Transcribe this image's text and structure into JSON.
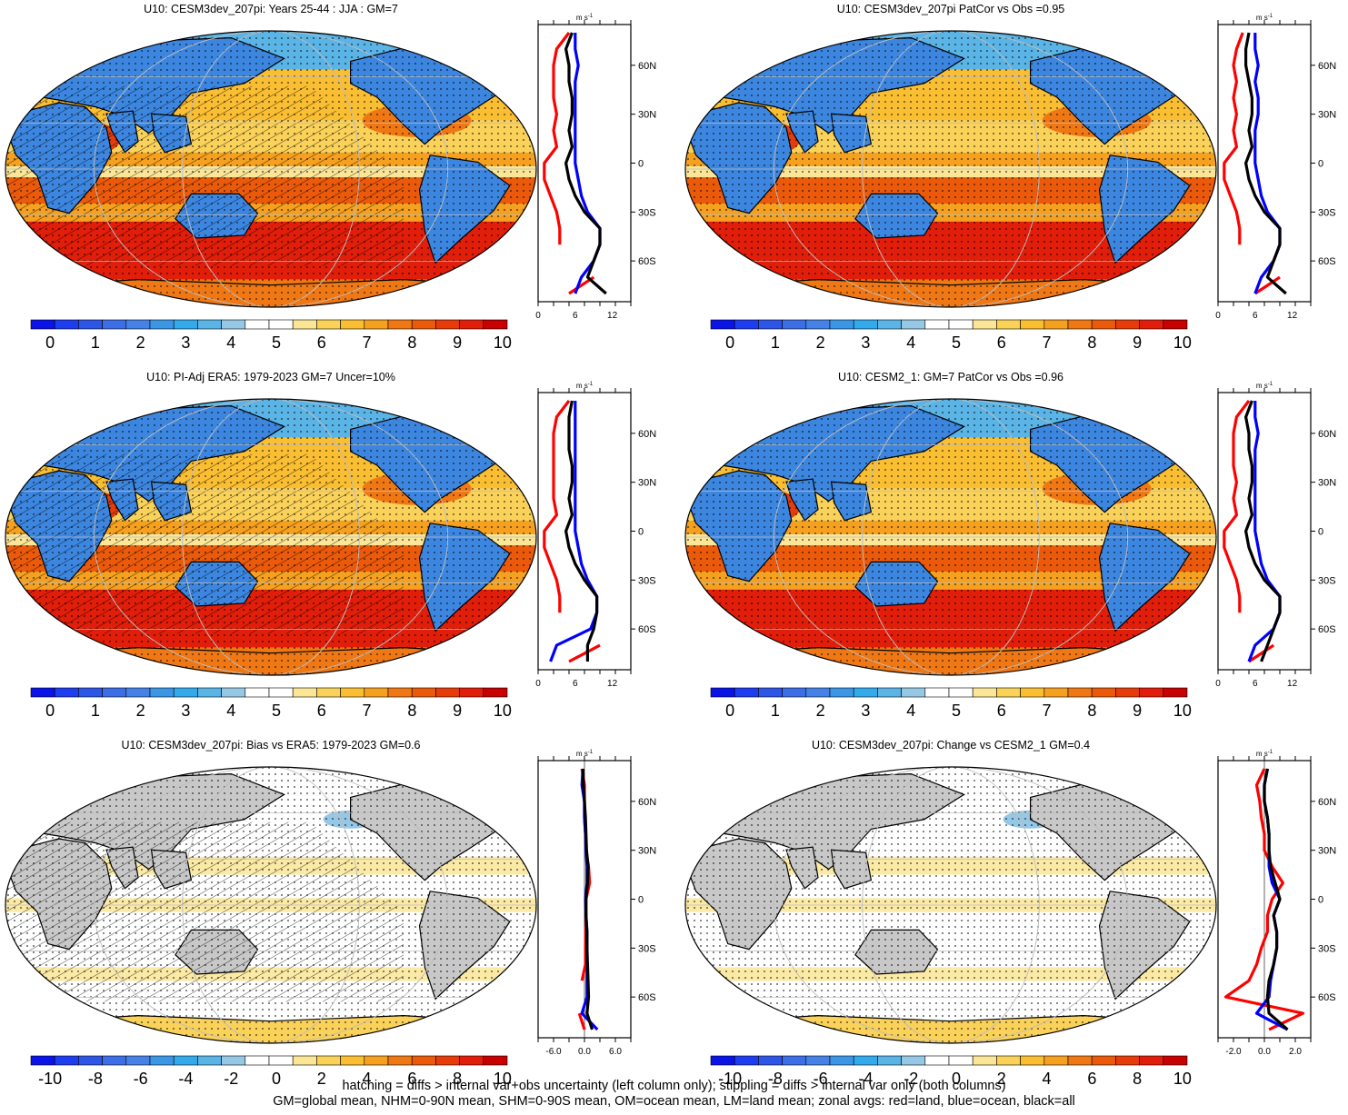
{
  "colors": {
    "scale": [
      "#0a14e6",
      "#1e3cf0",
      "#2d55e6",
      "#3c6ee6",
      "#4682e6",
      "#3c96e6",
      "#32aaeb",
      "#5ab4e6",
      "#96c8e6",
      "#ffffff",
      "#ffffff",
      "#fae696",
      "#fad25a",
      "#fabe32",
      "#f5a01e",
      "#f07814",
      "#eb5a0a",
      "#e63c0a",
      "#e11e0a",
      "#c80000"
    ],
    "land": "#c8c8c8",
    "red_line": "#ff0000",
    "blue_line": "#0000ff",
    "black_line": "#000000"
  },
  "panels": [
    {
      "id": "p1",
      "title": "U10: CESM3dev_207pi: Years 25-44 : JJA : GM=7",
      "kind": "abs",
      "colorbar_labels": [
        "0",
        "1",
        "2",
        "3",
        "4",
        "5",
        "6",
        "7",
        "8",
        "9",
        "10"
      ],
      "profile": {
        "unit": "m s",
        "unit_sup": "-1",
        "lat_labels": [
          "60N",
          "30N",
          "0",
          "30S",
          "60S"
        ],
        "x_labels": [
          "0",
          "6",
          "12"
        ]
      }
    },
    {
      "id": "p2",
      "title": "U10: CESM3dev_207pi PatCor vs Obs =0.95",
      "kind": "abs",
      "colorbar_labels": [
        "0",
        "1",
        "2",
        "3",
        "4",
        "5",
        "6",
        "7",
        "8",
        "9",
        "10"
      ],
      "profile": {
        "unit": "m s",
        "unit_sup": "-1",
        "lat_labels": [
          "60N",
          "30N",
          "0",
          "30S",
          "60S"
        ],
        "x_labels": [
          "0",
          "6",
          "12"
        ]
      }
    },
    {
      "id": "p3",
      "title": "U10: PI-Adj ERA5: 1979-2023 GM=7 Uncer=10%",
      "kind": "abs",
      "colorbar_labels": [
        "0",
        "1",
        "2",
        "3",
        "4",
        "5",
        "6",
        "7",
        "8",
        "9",
        "10"
      ],
      "profile": {
        "unit": "m s",
        "unit_sup": "-1",
        "lat_labels": [
          "60N",
          "30N",
          "0",
          "30S",
          "60S"
        ],
        "x_labels": [
          "0",
          "6",
          "12"
        ]
      }
    },
    {
      "id": "p4",
      "title": "U10: CESM2_1: GM=7 PatCor vs Obs =0.96",
      "kind": "abs",
      "colorbar_labels": [
        "0",
        "1",
        "2",
        "3",
        "4",
        "5",
        "6",
        "7",
        "8",
        "9",
        "10"
      ],
      "profile": {
        "unit": "m s",
        "unit_sup": "-1",
        "lat_labels": [
          "60N",
          "30N",
          "0",
          "30S",
          "60S"
        ],
        "x_labels": [
          "0",
          "6",
          "12"
        ]
      }
    },
    {
      "id": "p5",
      "title": "U10: CESM3dev_207pi: Bias vs ERA5: 1979-2023 GM=0.6",
      "kind": "diff",
      "colorbar_labels": [
        "-10",
        "-8",
        "-6",
        "-4",
        "-2",
        "0",
        "2",
        "4",
        "6",
        "8",
        "10"
      ],
      "profile": {
        "unit": "m s",
        "unit_sup": "-1",
        "lat_labels": [
          "60N",
          "30N",
          "0",
          "30S",
          "60S"
        ],
        "x_labels": [
          "-6.0",
          "0.0",
          "6.0"
        ]
      }
    },
    {
      "id": "p6",
      "title": "U10: CESM3dev_207pi: Change vs CESM2_1 GM=0.4",
      "kind": "diff",
      "colorbar_labels": [
        "-10",
        "-8",
        "-6",
        "-4",
        "-2",
        "0",
        "2",
        "4",
        "6",
        "8",
        "10"
      ],
      "profile": {
        "unit": "m s",
        "unit_sup": "-1",
        "lat_labels": [
          "60N",
          "30N",
          "0",
          "30S",
          "60S"
        ],
        "x_labels": [
          "-2.0",
          "0.0",
          "2.0"
        ]
      }
    }
  ],
  "chart_data": [
    {
      "type": "line",
      "title": "U10: CESM3dev_207pi: Years 25-44 : JJA : GM=7",
      "y": [
        80,
        70,
        60,
        50,
        40,
        30,
        20,
        10,
        0,
        -10,
        -20,
        -30,
        -40,
        -50,
        -60,
        -70,
        -80
      ],
      "xlim": [
        0,
        15
      ],
      "series": [
        {
          "color": "red",
          "values": [
            5,
            3,
            2.5,
            2.5,
            2.5,
            3,
            2.5,
            3,
            1,
            1,
            2,
            3,
            3.5,
            3.5,
            null,
            9,
            5
          ]
        },
        {
          "color": "blue",
          "values": [
            6,
            6,
            6.5,
            6,
            6,
            6,
            6,
            6,
            6,
            6.5,
            7,
            8,
            10,
            10,
            9,
            7,
            6
          ]
        },
        {
          "color": "black",
          "values": [
            5.5,
            4.5,
            5,
            5,
            5.5,
            5.5,
            5,
            5.5,
            4.5,
            5,
            6,
            7.5,
            10,
            10,
            9,
            8,
            11
          ]
        }
      ]
    },
    {
      "type": "line",
      "title": "U10: CESM3dev_207pi PatCor vs Obs =0.95",
      "y": [
        80,
        70,
        60,
        50,
        40,
        30,
        20,
        10,
        0,
        -10,
        -20,
        -30,
        -40,
        -50,
        -60,
        -70,
        -80
      ],
      "xlim": [
        0,
        15
      ],
      "series": [
        {
          "color": "red",
          "values": [
            4,
            3,
            2.5,
            3,
            2.5,
            3,
            2.5,
            3,
            1,
            1,
            2,
            3,
            3.5,
            3.5,
            null,
            10,
            6
          ]
        },
        {
          "color": "blue",
          "values": [
            6,
            6,
            6.5,
            6,
            6.5,
            6.5,
            6,
            6,
            6,
            6.5,
            7,
            8,
            10,
            10,
            9,
            7,
            6
          ]
        },
        {
          "color": "black",
          "values": [
            5,
            4.5,
            4.5,
            5,
            5.5,
            5.5,
            5,
            5.5,
            4.5,
            5,
            6,
            7.5,
            10,
            10,
            9,
            8,
            11
          ]
        }
      ]
    },
    {
      "type": "line",
      "title": "U10: PI-Adj ERA5: 1979-2023 GM=7 Uncer=10%",
      "y": [
        80,
        70,
        60,
        50,
        40,
        30,
        20,
        10,
        0,
        -10,
        -20,
        -30,
        -40,
        -50,
        -60,
        -70,
        -80
      ],
      "xlim": [
        0,
        15
      ],
      "series": [
        {
          "color": "red",
          "values": [
            5,
            3,
            2.5,
            2.5,
            2.5,
            2.5,
            2.5,
            3,
            1,
            1,
            2,
            3,
            3.5,
            3.5,
            null,
            10,
            5
          ]
        },
        {
          "color": "blue",
          "values": [
            6,
            6,
            6,
            6,
            6,
            6,
            6,
            6,
            6,
            6.5,
            7,
            8,
            9.5,
            9.5,
            8.5,
            3,
            2
          ]
        },
        {
          "color": "black",
          "values": [
            5.5,
            5,
            5,
            5,
            5.5,
            5.5,
            5,
            5.5,
            4.5,
            5,
            6,
            7.5,
            9.5,
            9.5,
            9,
            8,
            8
          ]
        }
      ]
    },
    {
      "type": "line",
      "title": "U10: CESM2_1: GM=7 PatCor vs Obs =0.96",
      "y": [
        80,
        70,
        60,
        50,
        40,
        30,
        20,
        10,
        0,
        -10,
        -20,
        -30,
        -40,
        -50,
        -60,
        -70,
        -80
      ],
      "xlim": [
        0,
        15
      ],
      "series": [
        {
          "color": "red",
          "values": [
            5,
            3,
            2.5,
            2.5,
            2.5,
            3,
            2.5,
            3,
            1,
            1,
            2,
            3,
            3.5,
            3.5,
            null,
            9,
            5
          ]
        },
        {
          "color": "blue",
          "values": [
            6,
            6,
            6.5,
            6,
            6,
            6,
            6,
            6,
            6,
            6.5,
            7,
            8,
            10,
            10,
            9,
            6,
            5
          ]
        },
        {
          "color": "black",
          "values": [
            5.5,
            4.5,
            5,
            5,
            5.5,
            5.5,
            5,
            5.5,
            4.5,
            5,
            6,
            7.5,
            10,
            10,
            9,
            8,
            7
          ]
        }
      ]
    },
    {
      "type": "line",
      "title": "U10: CESM3dev_207pi: Bias vs ERA5: 1979-2023 GM=0.6",
      "y": [
        80,
        70,
        60,
        50,
        40,
        30,
        20,
        10,
        0,
        -10,
        -20,
        -30,
        -40,
        -50,
        -60,
        -70,
        -80
      ],
      "xlim": [
        -9,
        9
      ],
      "series": [
        {
          "color": "red",
          "values": [
            -0.5,
            0,
            0,
            0,
            0.2,
            0.3,
            0.8,
            1,
            0.3,
            0.3,
            0.3,
            0.2,
            0.2,
            -0.5,
            null,
            -1,
            0
          ]
        },
        {
          "color": "blue",
          "values": [
            -0.3,
            -0.5,
            0,
            0,
            0.2,
            0.3,
            0.5,
            0.5,
            0.2,
            0.3,
            0.5,
            0.5,
            0.5,
            0.5,
            0.5,
            -0.5,
            2.5
          ]
        },
        {
          "color": "black",
          "values": [
            -0.3,
            -0.2,
            0,
            0.2,
            0.3,
            0.4,
            0.7,
            0.6,
            0.3,
            0.3,
            0.5,
            0.5,
            0.6,
            0.7,
            0.8,
            0.5,
            1.5
          ]
        }
      ]
    },
    {
      "type": "line",
      "title": "U10: CESM3dev_207pi: Change vs CESM2_1 GM=0.4",
      "y": [
        80,
        70,
        60,
        50,
        40,
        30,
        20,
        10,
        0,
        -10,
        -20,
        -30,
        -40,
        -50,
        -60,
        -70,
        -80
      ],
      "xlim": [
        -3,
        3
      ],
      "series": [
        {
          "color": "red",
          "values": [
            0,
            -0.5,
            -0.3,
            -0.2,
            0,
            0,
            0.5,
            1.2,
            0.5,
            0.2,
            0.2,
            -0.2,
            -0.5,
            -1,
            -2.5,
            2.5,
            0.3
          ]
        },
        {
          "color": "blue",
          "values": [
            0.2,
            0,
            0,
            0.2,
            0.3,
            0.3,
            0.3,
            0.5,
            1,
            0.6,
            0.8,
            0.8,
            0.6,
            0.4,
            0.3,
            -0.5,
            1.5
          ]
        },
        {
          "color": "black",
          "values": [
            0.2,
            0,
            0,
            0.2,
            0.3,
            0.3,
            0.4,
            0.7,
            1,
            0.6,
            0.8,
            0.8,
            0.6,
            0.3,
            0.2,
            0.3,
            1.5
          ]
        }
      ]
    }
  ],
  "footer": {
    "line1": "hatching = diffs > internal var+obs uncertainty (left column only); stippling = diffs > internal var only (both columns)",
    "line2": "GM=global mean, NHM=0-90N mean, SHM=0-90S mean, OM=ocean mean, LM=land mean; zonal avgs: red=land, blue=ocean, black=all"
  }
}
